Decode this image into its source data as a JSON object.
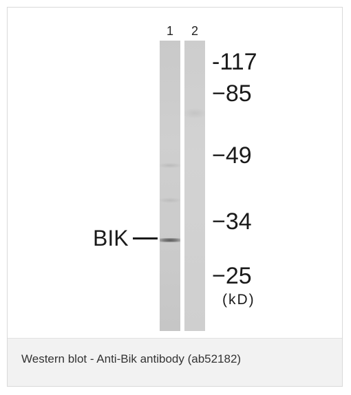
{
  "blot": {
    "lanes": [
      {
        "number": "1"
      },
      {
        "number": "2"
      }
    ],
    "markers": [
      {
        "label": "-117"
      },
      {
        "label": "−85"
      },
      {
        "label": "−49"
      },
      {
        "label": "−34"
      },
      {
        "label": "−25"
      }
    ],
    "unit": "(kD)",
    "protein_label": "BIK"
  },
  "caption": "Western blot - Anti-Bik antibody (ab52182)"
}
